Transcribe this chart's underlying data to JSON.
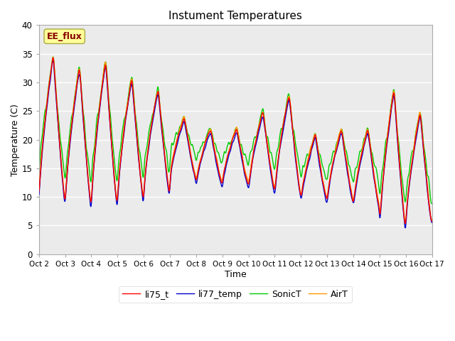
{
  "title": "Instument Temperatures",
  "xlabel": "Time",
  "ylabel": "Temperature (C)",
  "ylim": [
    0,
    40
  ],
  "xlim": [
    0,
    15
  ],
  "xtick_labels": [
    "Oct 2",
    "Oct 3",
    "Oct 4",
    "Oct 5",
    "Oct 6",
    "Oct 7",
    "Oct 8",
    "Oct 9",
    "Oct 10",
    "Oct 11",
    "Oct 12",
    "Oct 13",
    "Oct 14",
    "Oct 15",
    "Oct 16",
    "Oct 17"
  ],
  "xtick_positions": [
    0,
    1,
    2,
    3,
    4,
    5,
    6,
    7,
    8,
    9,
    10,
    11,
    12,
    13,
    14,
    15
  ],
  "ytick_labels": [
    "0",
    "5",
    "10",
    "15",
    "20",
    "25",
    "30",
    "35",
    "40"
  ],
  "ytick_positions": [
    0,
    5,
    10,
    15,
    20,
    25,
    30,
    35,
    40
  ],
  "colors": {
    "li75_t": "#ff0000",
    "li77_temp": "#0000cc",
    "SonicT": "#00cc00",
    "AirT": "#ff9900"
  },
  "line_width": 1.0,
  "bg_color": "#ebebeb",
  "annotation_text": "EE_flux",
  "annotation_color": "#880000",
  "annotation_bg": "#ffff99",
  "series_names": [
    "li75_t",
    "li77_temp",
    "SonicT",
    "AirT"
  ],
  "figsize": [
    6.4,
    4.8
  ],
  "dpi": 100
}
